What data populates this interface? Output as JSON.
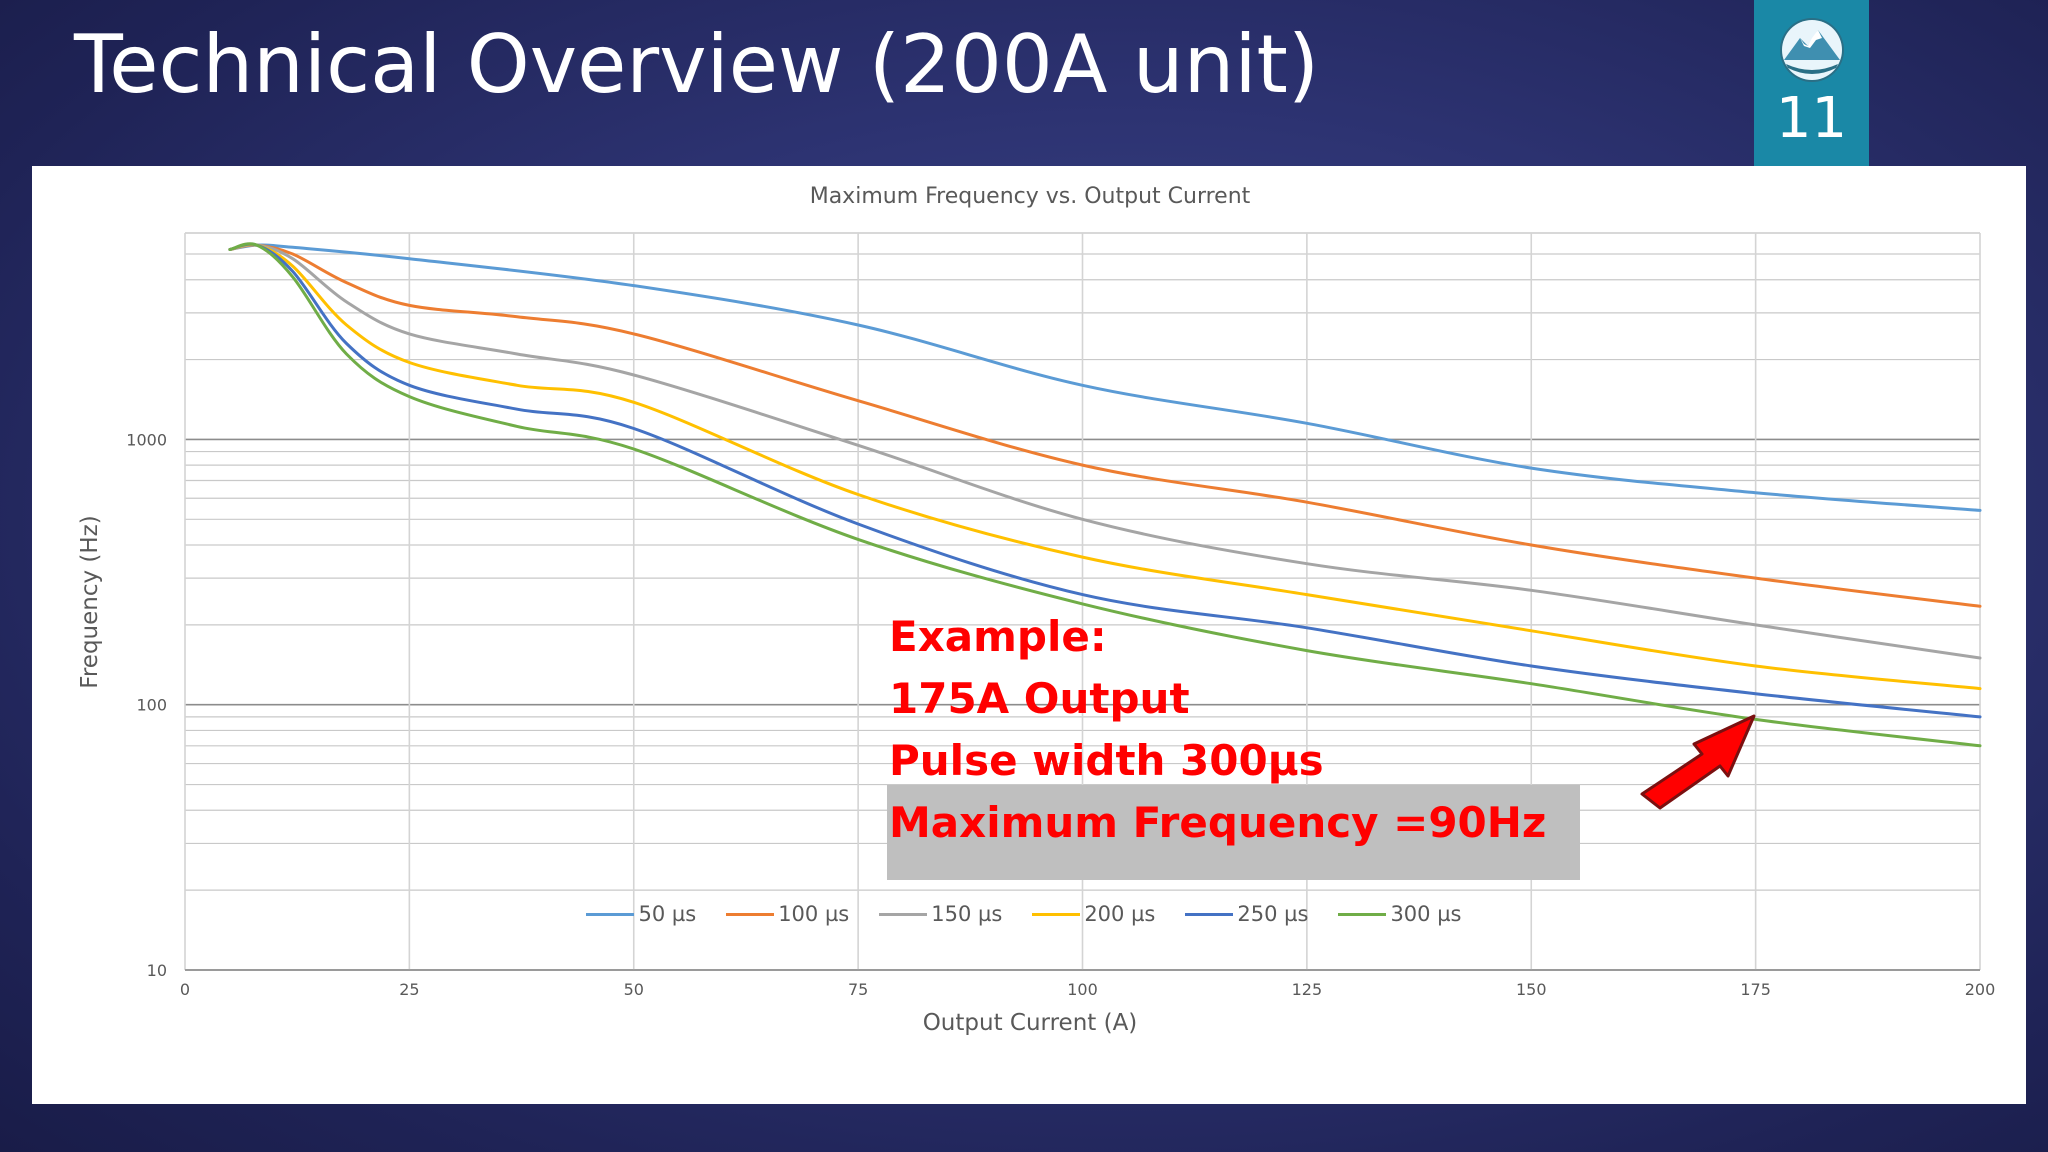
{
  "slide": {
    "title": "Technical Overview (200A unit)",
    "page_number": "11"
  },
  "annotation": {
    "line1": "Example:",
    "line2": "175A Output",
    "line3": "Pulse width 300µs",
    "line4": "Maximum Frequency =90Hz",
    "color": "#ff0000",
    "highlight_color": "#bfbfbf"
  },
  "chart_data": {
    "type": "line",
    "title": "Maximum Frequency vs. Output Current",
    "xlabel": "Output Current (A)",
    "ylabel": "Frequency (Hz)",
    "xlim": [
      0,
      200
    ],
    "ylim": [
      10,
      6000
    ],
    "yscale": "log",
    "xticks": [
      "0",
      "25",
      "50",
      "75",
      "100",
      "125",
      "150",
      "175",
      "200"
    ],
    "yticks": [
      "10",
      "100",
      "1000"
    ],
    "grid": true,
    "legend_position": "bottom",
    "series": [
      {
        "name": "50 µs",
        "color": "#5b9bd5",
        "x": [
          5,
          8,
          12,
          25,
          50,
          75,
          100,
          125,
          150,
          175,
          200
        ],
        "y": [
          5200,
          5400,
          5300,
          4800,
          3800,
          2700,
          1600,
          1150,
          780,
          630,
          540
        ]
      },
      {
        "name": "100 µs",
        "color": "#ed7d31",
        "x": [
          5,
          8,
          12,
          18,
          25,
          37,
          50,
          75,
          100,
          125,
          150,
          175,
          200
        ],
        "y": [
          5200,
          5400,
          5000,
          3900,
          3200,
          2900,
          2500,
          1400,
          800,
          580,
          400,
          300,
          235
        ]
      },
      {
        "name": "150 µs",
        "color": "#a5a5a5",
        "x": [
          5,
          8,
          12,
          18,
          25,
          37,
          50,
          75,
          100,
          125,
          150,
          175,
          200
        ],
        "y": [
          5200,
          5400,
          4800,
          3300,
          2500,
          2100,
          1750,
          950,
          500,
          340,
          270,
          200,
          150
        ]
      },
      {
        "name": "200 µs",
        "color": "#ffc000",
        "x": [
          5,
          8,
          12,
          18,
          25,
          37,
          50,
          75,
          100,
          125,
          150,
          175,
          200
        ],
        "y": [
          5200,
          5400,
          4500,
          2700,
          1950,
          1600,
          1380,
          620,
          360,
          260,
          190,
          140,
          115
        ]
      },
      {
        "name": "250 µs",
        "color": "#4472c4",
        "x": [
          5,
          8,
          12,
          18,
          25,
          37,
          50,
          75,
          100,
          125,
          150,
          175,
          200
        ],
        "y": [
          5200,
          5400,
          4300,
          2300,
          1600,
          1300,
          1100,
          480,
          260,
          195,
          140,
          110,
          90
        ]
      },
      {
        "name": "300 µs",
        "color": "#70ad47",
        "x": [
          5,
          8,
          12,
          18,
          25,
          37,
          50,
          75,
          100,
          125,
          150,
          175,
          200
        ],
        "y": [
          5200,
          5400,
          4100,
          2100,
          1450,
          1120,
          920,
          420,
          240,
          160,
          120,
          88,
          70
        ]
      }
    ]
  }
}
